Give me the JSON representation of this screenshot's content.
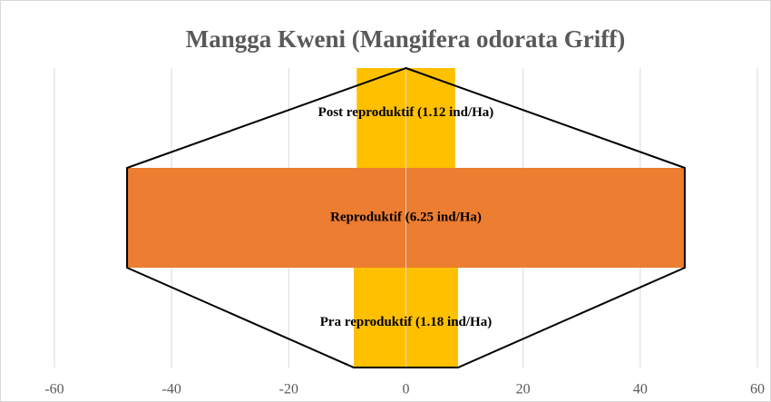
{
  "chart_data": {
    "type": "bar",
    "orientation": "horizontal",
    "title": "Mangga Kweni (Mangifera odorata Griff)",
    "categories": [
      "Pra reproduktif (1.18 ind/Ha)",
      "Reproduktif (6.25 ind/Ha)",
      "Post reproduktif (1.12 ind/Ha)"
    ],
    "series": [
      {
        "colors": [
          "#FFC000",
          "#ED7D31",
          "#FFC000"
        ],
        "values": [
          -8.9,
          -47.6,
          -8.4
        ]
      },
      {
        "colors": [
          "#FFC000",
          "#ED7D31",
          "#FFC000"
        ],
        "values": [
          8.9,
          47.6,
          8.4
        ]
      }
    ],
    "xlim": [
      -60,
      60
    ],
    "xticks": [
      -60,
      -40,
      -20,
      0,
      20,
      40,
      60
    ],
    "grid": true
  }
}
